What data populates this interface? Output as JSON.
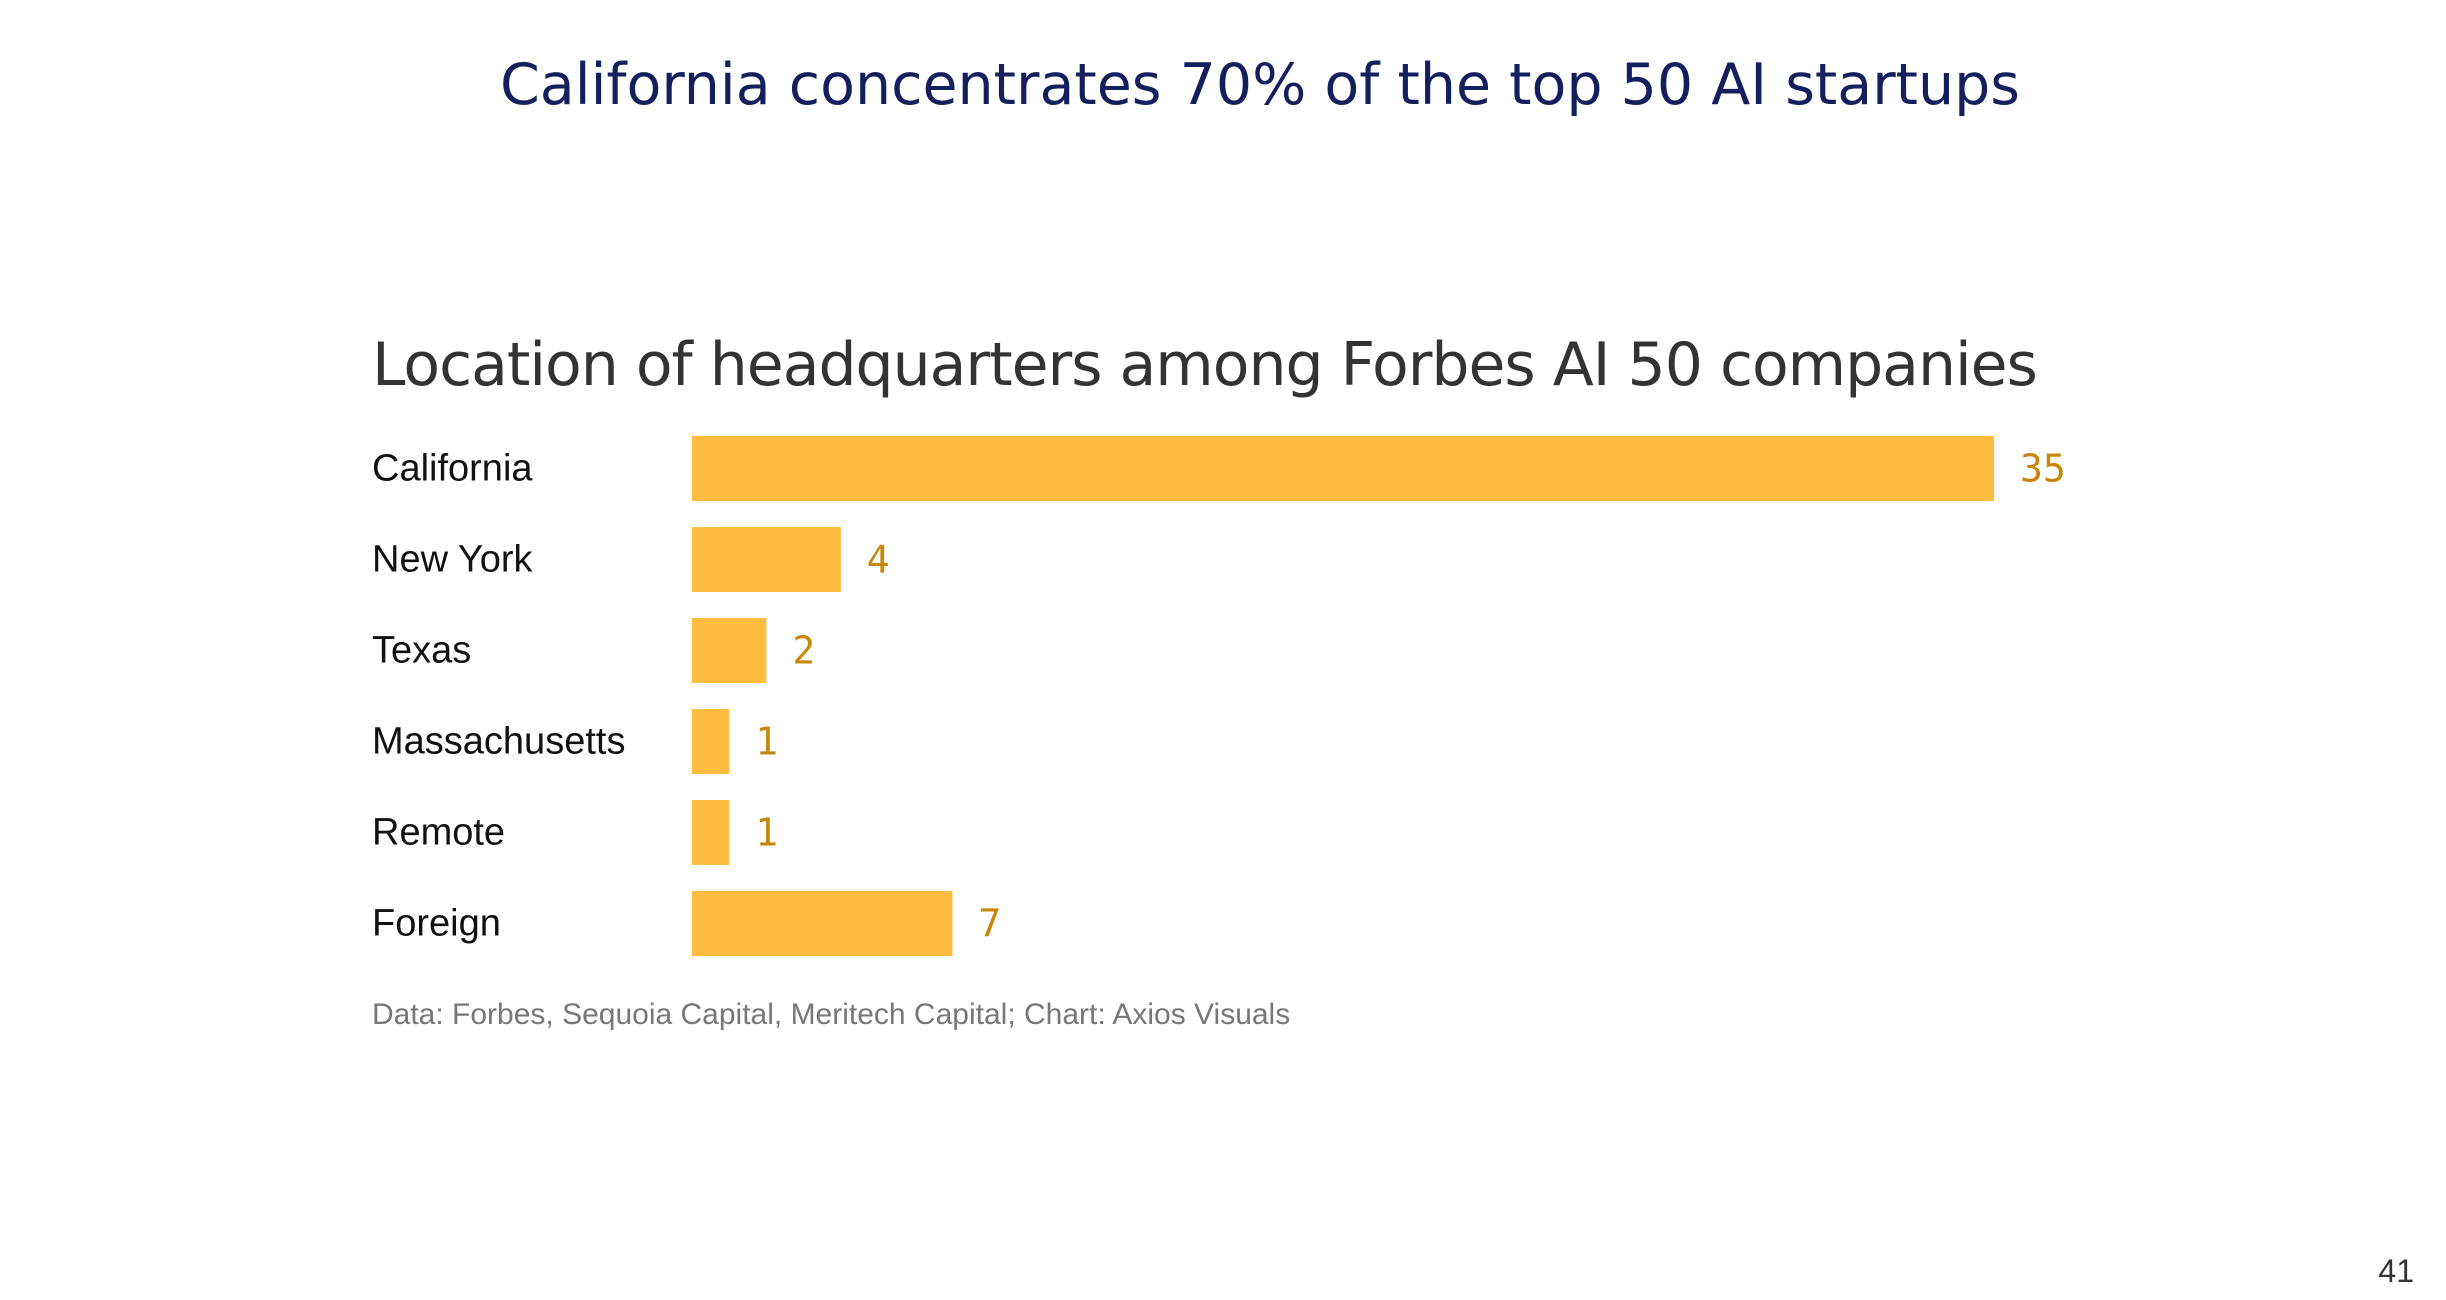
{
  "slide": {
    "title": "California concentrates 70% of the top 50 AI startups",
    "page_number": "41"
  },
  "chart_data": {
    "type": "bar",
    "orientation": "horizontal",
    "title": "Location of headquarters among Forbes AI 50 companies",
    "categories": [
      "California",
      "New York",
      "Texas",
      "Massachusetts",
      "Remote",
      "Foreign"
    ],
    "values": [
      35,
      4,
      2,
      1,
      1,
      7
    ],
    "xlim": [
      0,
      35
    ],
    "xlabel": "",
    "ylabel": "",
    "grid": false,
    "bar_color": "#ffbc3f",
    "value_label_color": "#c8870a",
    "source": "Data: Forbes, Sequoia Capital, Meritech Capital; Chart: Axios Visuals"
  }
}
